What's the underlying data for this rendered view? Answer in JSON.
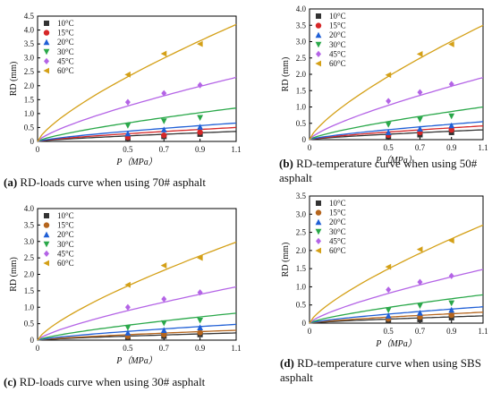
{
  "chart_data": [
    {
      "type": "scatter",
      "id": "a",
      "xlabel": "P（MPa）",
      "ylabel": "RD (mm)",
      "xlim": [
        0,
        1.1
      ],
      "ylim": [
        0,
        4.5
      ],
      "xticks": [
        "0",
        "0.5",
        "0.7",
        "0.9",
        "1.1"
      ],
      "yticks": [
        "0",
        "0.5",
        "1.0",
        "1.5",
        "2.0",
        "2.5",
        "3.0",
        "3.5",
        "4.0",
        "4.5"
      ],
      "legend_position": "top-left",
      "x": [
        0.5,
        0.7,
        0.9
      ],
      "series": [
        {
          "name": "10°C",
          "color": "#333333",
          "marker": "square",
          "values": [
            0.12,
            0.18,
            0.26
          ],
          "fit_end": 0.36
        },
        {
          "name": "15°C",
          "color": "#d62728",
          "marker": "circle",
          "values": [
            0.15,
            0.22,
            0.33
          ],
          "fit_end": 0.5
        },
        {
          "name": "20°C",
          "color": "#1f5fd6",
          "marker": "triangle",
          "values": [
            0.28,
            0.42,
            0.52
          ],
          "fit_end": 0.66
        },
        {
          "name": "30°C",
          "color": "#2aa84a",
          "marker": "tri-down",
          "values": [
            0.57,
            0.73,
            0.85
          ],
          "fit_end": 1.2
        },
        {
          "name": "45°C",
          "color": "#b464e6",
          "marker": "diamond",
          "values": [
            1.41,
            1.73,
            2.02
          ],
          "fit_end": 2.3
        },
        {
          "name": "60°C",
          "color": "#d4a017",
          "marker": "tri-left",
          "values": [
            2.4,
            3.15,
            3.5
          ],
          "fit_end": 4.2
        }
      ]
    },
    {
      "type": "scatter",
      "id": "b",
      "xlabel": "P（MPa）",
      "ylabel": "RD (mm)",
      "xlim": [
        0,
        1.1
      ],
      "ylim": [
        0,
        4.0
      ],
      "xticks": [
        "0",
        "0.5",
        "0.7",
        "0.9",
        "1.1"
      ],
      "yticks": [
        "0",
        "0.5",
        "1.0",
        "1.5",
        "2.0",
        "2.5",
        "3.0",
        "3.5",
        "4.0"
      ],
      "legend_position": "top-left",
      "x": [
        0.5,
        0.7,
        0.9
      ],
      "series": [
        {
          "name": "10°C",
          "color": "#333333",
          "marker": "square",
          "values": [
            0.1,
            0.15,
            0.22
          ],
          "fit_end": 0.3
        },
        {
          "name": "15°C",
          "color": "#d62728",
          "marker": "circle",
          "values": [
            0.14,
            0.22,
            0.3
          ],
          "fit_end": 0.42
        },
        {
          "name": "20°C",
          "color": "#1f5fd6",
          "marker": "triangle",
          "values": [
            0.22,
            0.33,
            0.43
          ],
          "fit_end": 0.55
        },
        {
          "name": "30°C",
          "color": "#2aa84a",
          "marker": "tri-down",
          "values": [
            0.46,
            0.62,
            0.72
          ],
          "fit_end": 1.0
        },
        {
          "name": "45°C",
          "color": "#b464e6",
          "marker": "diamond",
          "values": [
            1.18,
            1.45,
            1.7
          ],
          "fit_end": 1.9
        },
        {
          "name": "60°C",
          "color": "#d4a017",
          "marker": "tri-left",
          "values": [
            1.98,
            2.62,
            2.92
          ],
          "fit_end": 3.5
        }
      ]
    },
    {
      "type": "scatter",
      "id": "c",
      "xlabel": "P（MPa）",
      "ylabel": "RD (mm)",
      "xlim": [
        0,
        1.1
      ],
      "ylim": [
        0,
        4.0
      ],
      "xticks": [
        "0",
        "0.5",
        "0.7",
        "0.9",
        "1.1"
      ],
      "yticks": [
        "0",
        "0.5",
        "1.0",
        "1.5",
        "2.0",
        "2.5",
        "3.0",
        "3.5",
        "4.0"
      ],
      "legend_position": "top-left",
      "x": [
        0.5,
        0.7,
        0.9
      ],
      "series": [
        {
          "name": "10°C",
          "color": "#333333",
          "marker": "square",
          "values": [
            0.08,
            0.12,
            0.17
          ],
          "fit_end": 0.22
        },
        {
          "name": "15°C",
          "color": "#b5651d",
          "marker": "circle",
          "values": [
            0.12,
            0.17,
            0.23
          ],
          "fit_end": 0.3
        },
        {
          "name": "20°C",
          "color": "#1f5fd6",
          "marker": "triangle",
          "values": [
            0.22,
            0.3,
            0.38
          ],
          "fit_end": 0.48
        },
        {
          "name": "30°C",
          "color": "#2aa84a",
          "marker": "tri-down",
          "values": [
            0.38,
            0.52,
            0.6
          ],
          "fit_end": 0.82
        },
        {
          "name": "45°C",
          "color": "#b464e6",
          "marker": "diamond",
          "values": [
            1.0,
            1.25,
            1.45
          ],
          "fit_end": 1.62
        },
        {
          "name": "60°C",
          "color": "#d4a017",
          "marker": "tri-left",
          "values": [
            1.68,
            2.27,
            2.5
          ],
          "fit_end": 2.98
        }
      ]
    },
    {
      "type": "scatter",
      "id": "d",
      "xlabel": "P（MPa）",
      "ylabel": "RD (mm)",
      "xlim": [
        0,
        1.1
      ],
      "ylim": [
        0,
        3.5
      ],
      "xticks": [
        "0",
        "0.5",
        "0.7",
        "0.9",
        "1.1"
      ],
      "yticks": [
        "0",
        "0.5",
        "1.0",
        "1.5",
        "2.0",
        "2.5",
        "3.0",
        "3.5"
      ],
      "legend_position": "top-left",
      "x": [
        0.5,
        0.7,
        0.9
      ],
      "series": [
        {
          "name": "10°C",
          "color": "#333333",
          "marker": "square",
          "values": [
            0.07,
            0.1,
            0.15
          ],
          "fit_end": 0.2
        },
        {
          "name": "15°C",
          "color": "#b5651d",
          "marker": "circle",
          "values": [
            0.12,
            0.17,
            0.22
          ],
          "fit_end": 0.3
        },
        {
          "name": "20°C",
          "color": "#1f5fd6",
          "marker": "triangle",
          "values": [
            0.2,
            0.28,
            0.36
          ],
          "fit_end": 0.45
        },
        {
          "name": "30°C",
          "color": "#2aa84a",
          "marker": "tri-down",
          "values": [
            0.36,
            0.48,
            0.55
          ],
          "fit_end": 0.78
        },
        {
          "name": "45°C",
          "color": "#b464e6",
          "marker": "diamond",
          "values": [
            0.92,
            1.13,
            1.3
          ],
          "fit_end": 1.48
        },
        {
          "name": "60°C",
          "color": "#d4a017",
          "marker": "tri-left",
          "values": [
            1.55,
            2.03,
            2.27
          ],
          "fit_end": 2.7
        }
      ]
    }
  ],
  "captions": {
    "a": {
      "label": "(a)",
      "text": " RD-loads curve when using 70# asphalt"
    },
    "b": {
      "label": "(b)",
      "text": " RD-temperature curve when using 50# asphalt"
    },
    "c": {
      "label": "(c)",
      "text": " RD-loads curve when using 30# asphalt"
    },
    "d": {
      "label": "(d)",
      "text": " RD-temperature curve when using SBS asphalt"
    }
  }
}
